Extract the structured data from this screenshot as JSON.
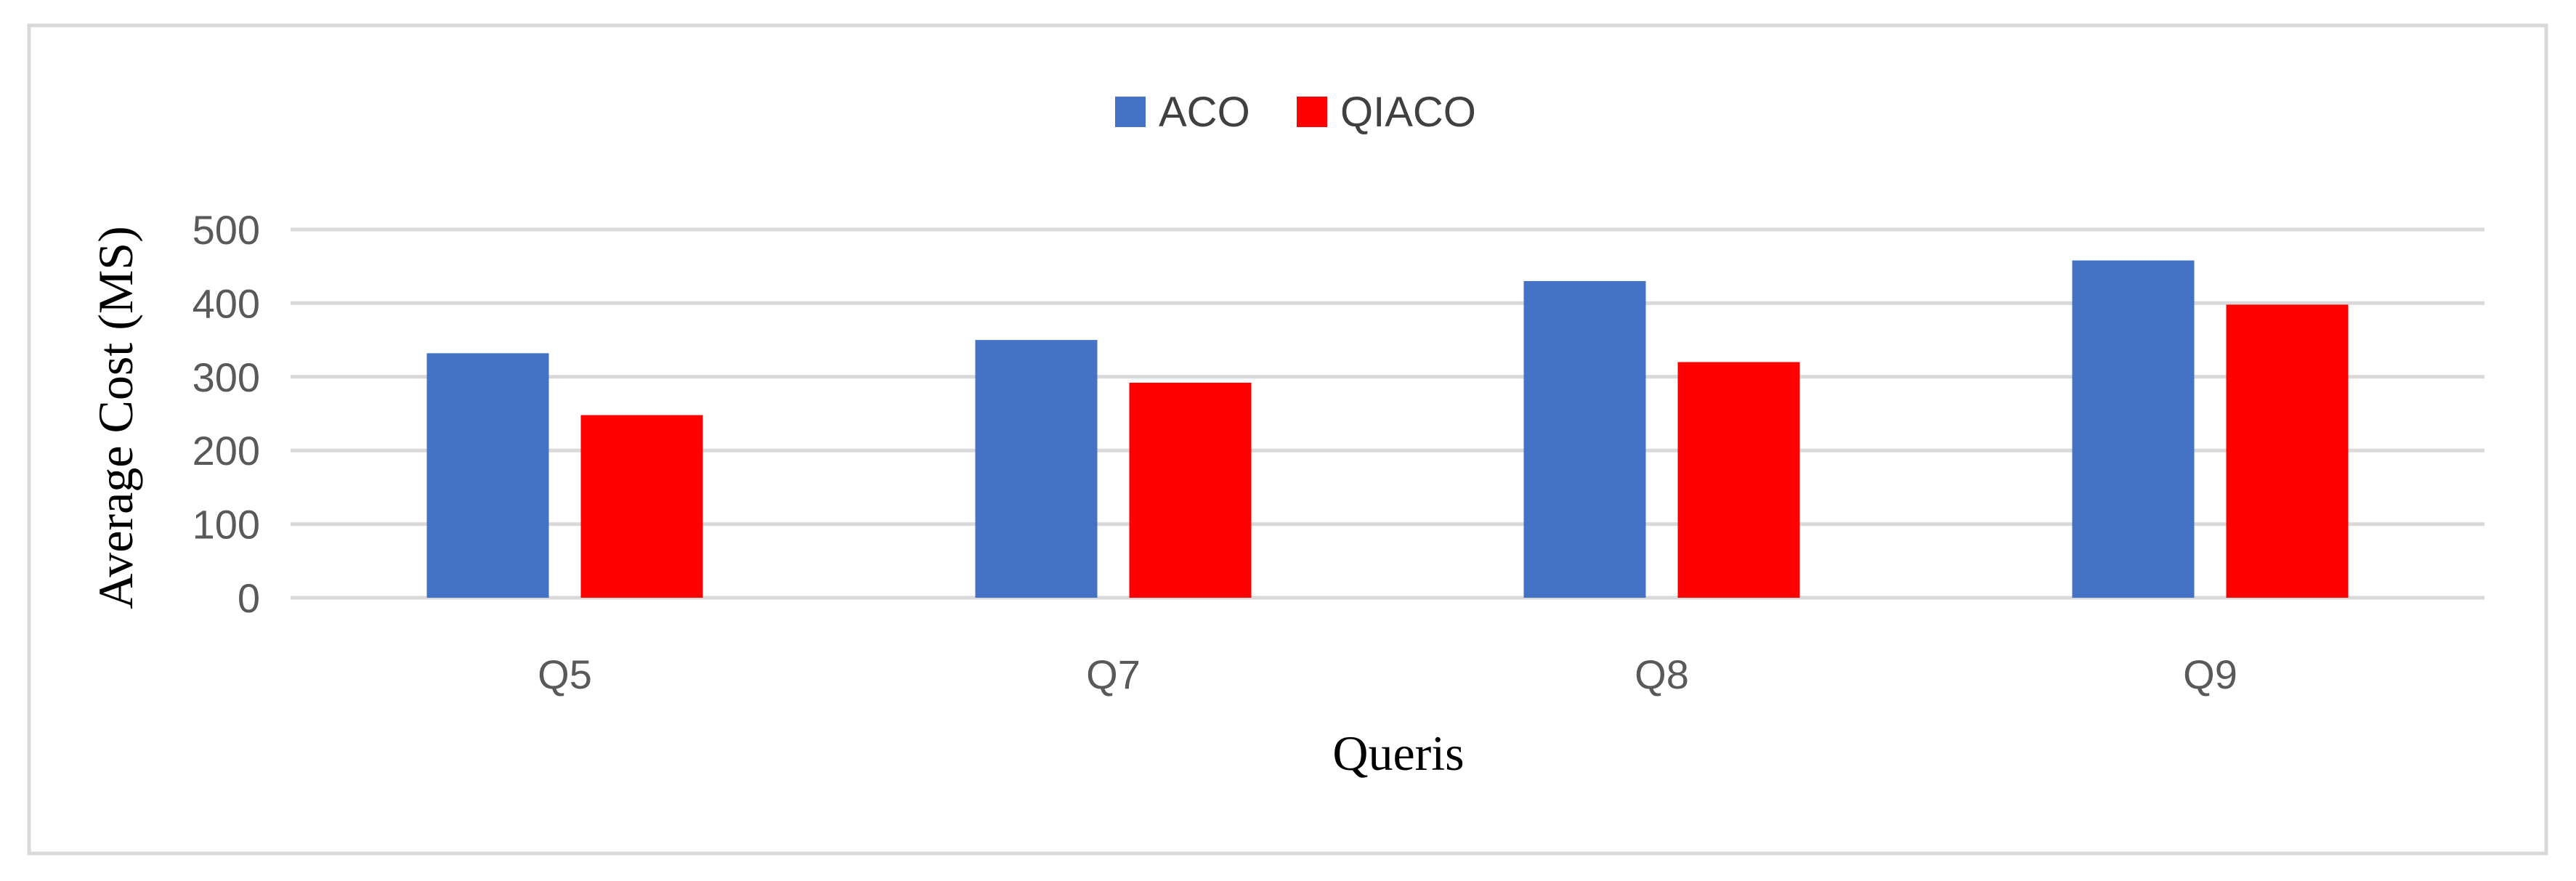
{
  "chart_data": {
    "type": "bar",
    "categories": [
      "Q5",
      "Q7",
      "Q8",
      "Q9"
    ],
    "series": [
      {
        "name": "ACO",
        "values": [
          332,
          350,
          430,
          458
        ],
        "color": "#4472C4"
      },
      {
        "name": "QIACO",
        "values": [
          248,
          292,
          320,
          398
        ],
        "color": "#FF0000"
      }
    ],
    "xlabel": "Queris",
    "ylabel": "Average Cost (MS)",
    "ylim": [
      0,
      500
    ],
    "yticks": [
      0,
      100,
      200,
      300,
      400,
      500
    ],
    "grid": true,
    "legend": "top-center"
  }
}
